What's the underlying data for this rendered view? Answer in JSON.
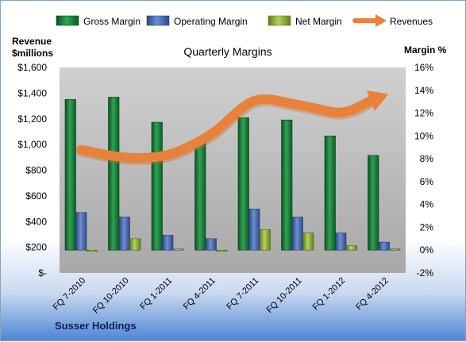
{
  "chart_data": {
    "type": "bar",
    "title": "Quarterly Margins",
    "company": "Susser Holdings",
    "left_axis_title": [
      "Revenue",
      "$millions"
    ],
    "right_axis_title": "Margin %",
    "categories": [
      "FQ 7-2010",
      "FQ 10-2010",
      "FQ 1-2011",
      "FQ 4-2011",
      "FQ 7-2011",
      "FQ 10-2011",
      "FQ 1-2012",
      "FQ 4-2012"
    ],
    "left_axis": {
      "min": 0,
      "max": 1600,
      "ticks": [
        "$-",
        "$200",
        "$400",
        "$600",
        "$800",
        "$1,000",
        "$1,200",
        "$1,400",
        "$1,600"
      ]
    },
    "right_axis": {
      "min": -2,
      "max": 16,
      "ticks": [
        "-2%",
        "0%",
        "2%",
        "4%",
        "6%",
        "8%",
        "10%",
        "12%",
        "14%",
        "16%"
      ]
    },
    "series": [
      {
        "name": "Gross Margin",
        "axis": "right",
        "kind": "bar",
        "color": "#1e7a3c",
        "values": [
          13.2,
          13.4,
          11.2,
          9.4,
          11.6,
          11.4,
          10.0,
          8.3
        ]
      },
      {
        "name": "Operating Margin",
        "axis": "right",
        "kind": "bar",
        "color": "#4a6fb5",
        "values": [
          3.3,
          2.9,
          1.3,
          1.0,
          3.6,
          2.9,
          1.5,
          0.7
        ]
      },
      {
        "name": "Net Margin",
        "axis": "right",
        "kind": "bar",
        "color": "#8fae3a",
        "values": [
          -0.1,
          1.0,
          0.1,
          -0.1,
          1.8,
          1.5,
          0.4,
          0.1
        ]
      },
      {
        "name": "Revenues",
        "axis": "left",
        "kind": "arrow-line",
        "color": "#e8823a",
        "values": [
          960,
          900,
          920,
          1080,
          1340,
          1310,
          1250,
          1380
        ]
      }
    ],
    "legend_position": "top",
    "grid": false
  }
}
